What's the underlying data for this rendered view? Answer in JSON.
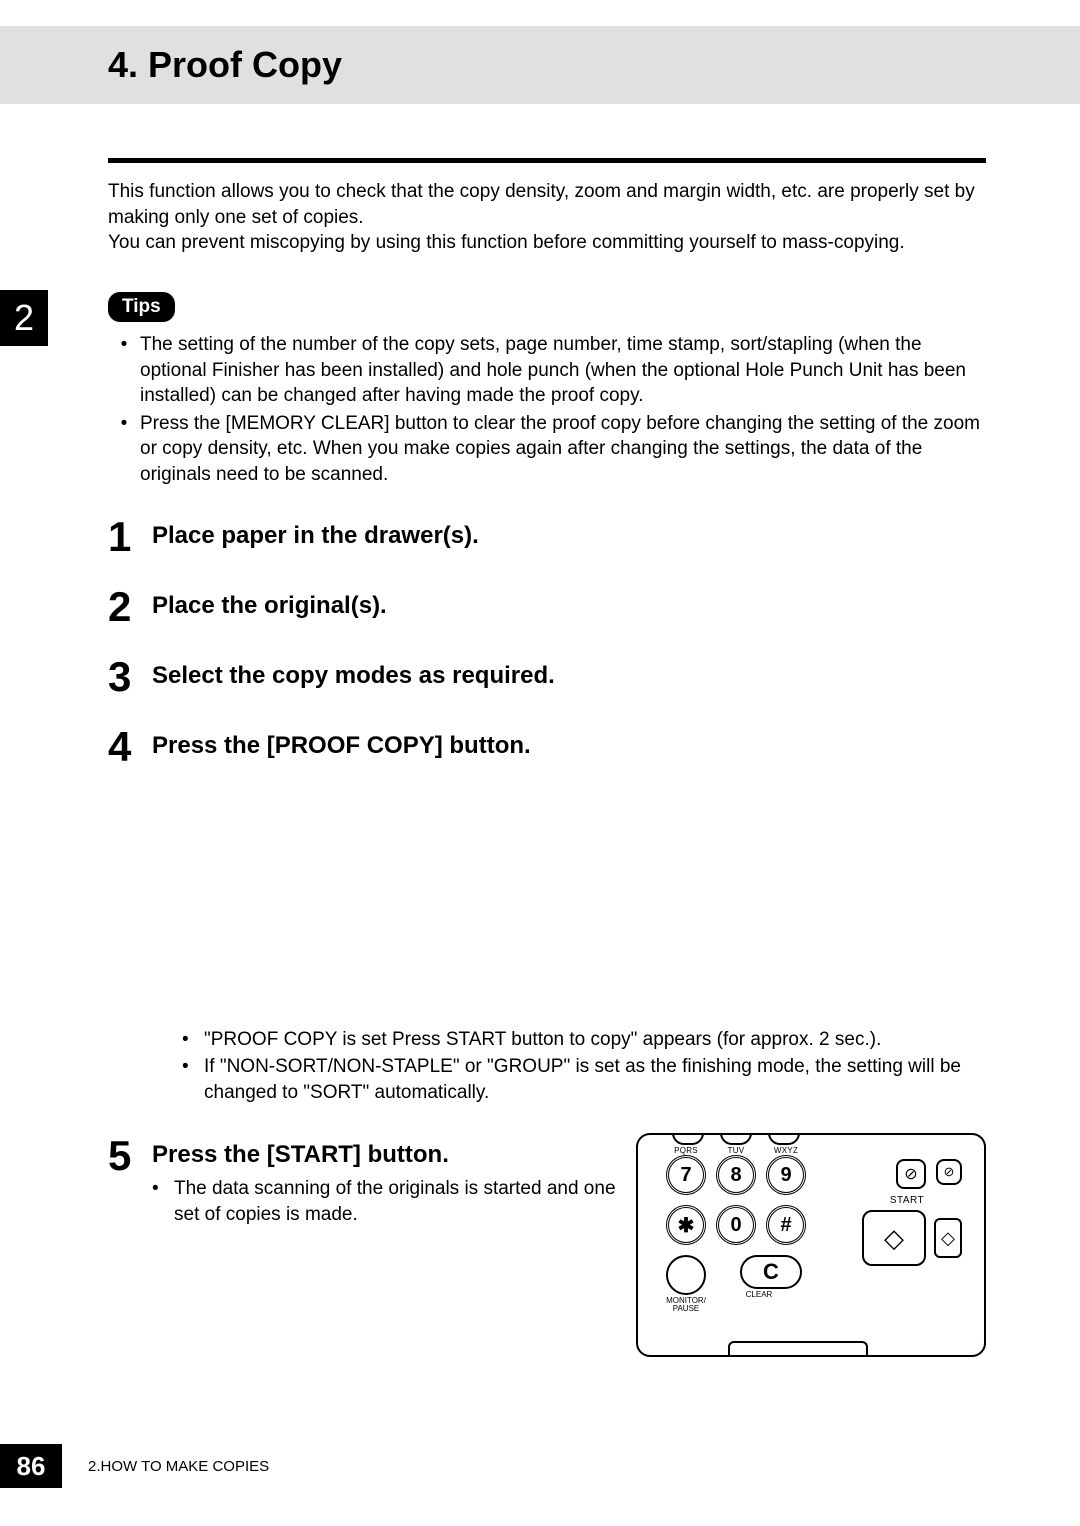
{
  "header": {
    "title": "4. Proof Copy"
  },
  "chapter_tab": "2",
  "intro": {
    "p1": "This function allows you to check that the copy density, zoom and margin width, etc. are properly set by making only one set of copies.",
    "p2": "You can prevent miscopying by using this function before committing yourself to mass-copying."
  },
  "tips": {
    "badge": "Tips",
    "items": [
      "The setting of the number of the copy sets, page number, time stamp, sort/stapling (when the optional Finisher has been installed) and hole punch (when the optional Hole Punch Unit has been installed) can be changed after having made the proof copy.",
      "Press the [MEMORY CLEAR] button to clear the proof copy before changing the setting of the zoom or copy density, etc. When you make copies again after changing the settings, the data of the originals need to be scanned."
    ]
  },
  "steps": [
    {
      "num": "1",
      "title": "Place paper in the drawer(s)."
    },
    {
      "num": "2",
      "title": "Place the original(s)."
    },
    {
      "num": "3",
      "title": "Select the copy modes as required."
    },
    {
      "num": "4",
      "title": "Press the [PROOF COPY] button.",
      "notes": [
        "\"PROOF COPY is set  Press START button to copy\" appears (for approx. 2 sec.).",
        "If \"NON-SORT/NON-STAPLE\" or \"GROUP\" is set as the finishing mode, the setting will be changed to \"SORT\" automatically."
      ]
    },
    {
      "num": "5",
      "title": "Press the [START] button.",
      "notes": [
        "The data scanning of the originals is started and one set of copies is made."
      ]
    }
  ],
  "panel": {
    "keys": {
      "k7": "7",
      "k7_sup": "PQRS",
      "k8": "8",
      "k8_sup": "TUV",
      "k9": "9",
      "k9_sup": "WXYZ",
      "kstar": "✱",
      "k0": "0",
      "khash": "#",
      "kC": "C",
      "monitor_label": "MONITOR/\nPAUSE",
      "clear_label": "CLEAR",
      "start_label": "START"
    }
  },
  "footer": {
    "page": "86",
    "text": "2.HOW TO MAKE COPIES"
  },
  "colors": {
    "header_bg": "#e0e0e0",
    "black": "#000000",
    "white": "#ffffff"
  }
}
